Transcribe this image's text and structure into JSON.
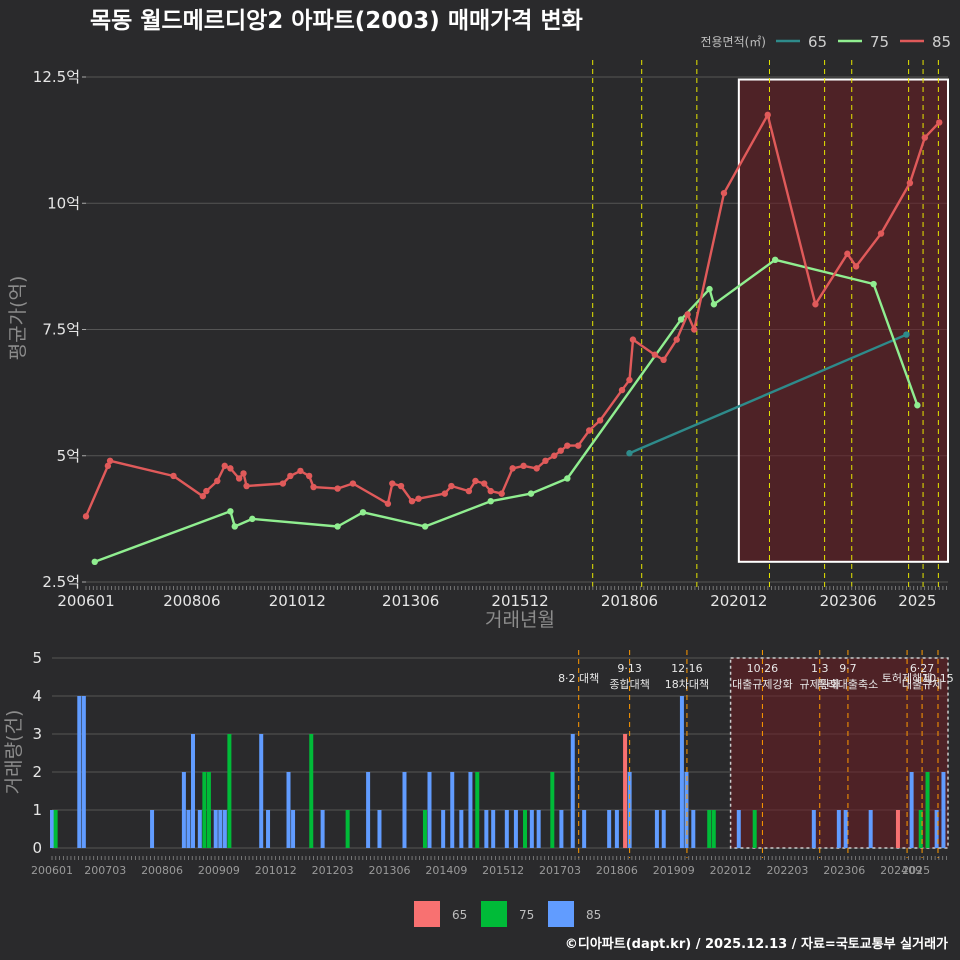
{
  "title": "목동 월드메르디앙2 아파트(2003) 매매가격 변화",
  "credit": "©디아파트(dapt.kr) / 2025.12.13 / 자료=국토교통부 실거래가",
  "colors": {
    "s65": "#2e8b8b",
    "s75": "#90ee90",
    "s85": "#e05a5a",
    "bar65": "#f87171",
    "bar75": "#00bb38",
    "bar85": "#619cff",
    "policy_line": "#e6e600",
    "policy_line_bottom": "#ff9900",
    "highlight_fill": "#6b1c22",
    "highlight_stroke": "#ffffff"
  },
  "chart_data": [
    {
      "type": "line",
      "title": "목동 월드메르디앙2 아파트(2003) 매매가격 변화",
      "xlabel": "거래년월",
      "ylabel": "평균가(억)",
      "xlim": [
        2006.0,
        2025.7
      ],
      "ylim": [
        2.5,
        12.5
      ],
      "y_ticks": [
        2.5,
        5,
        7.5,
        10,
        12.5
      ],
      "y_tick_labels": [
        "2.5억",
        "5억",
        "7.5억",
        "10억",
        "12.5억"
      ],
      "x_ticks": [
        2006.0,
        2008.42,
        2010.83,
        2013.42,
        2015.92,
        2018.42,
        2020.92,
        2023.42,
        2025.0
      ],
      "x_tick_labels": [
        "200601",
        "200806",
        "201012",
        "201306",
        "201512",
        "201806",
        "202012",
        "202306",
        "2025"
      ],
      "legend_title": "전용면적(㎡)",
      "legend_position": "top-right",
      "highlight_range": {
        "x": [
          2020.92,
          2025.7
        ],
        "y": [
          2.9,
          12.45
        ]
      },
      "policy_lines_x": [
        2017.58,
        2018.7,
        2019.96,
        2021.62,
        2022.88,
        2023.5,
        2024.8,
        2025.13,
        2025.48
      ],
      "series": [
        {
          "name": "65",
          "points": [
            [
              2018.42,
              5.05
            ],
            [
              2024.75,
              7.4
            ]
          ]
        },
        {
          "name": "75",
          "points": [
            [
              2006.2,
              2.9
            ],
            [
              2009.3,
              3.9
            ],
            [
              2009.4,
              3.6
            ],
            [
              2009.8,
              3.75
            ],
            [
              2011.75,
              3.6
            ],
            [
              2012.33,
              3.88
            ],
            [
              2013.75,
              3.6
            ],
            [
              2015.25,
              4.1
            ],
            [
              2016.17,
              4.25
            ],
            [
              2017.0,
              4.55
            ],
            [
              2019.6,
              7.7
            ],
            [
              2020.25,
              8.3
            ],
            [
              2020.35,
              8.0
            ],
            [
              2021.75,
              8.88
            ],
            [
              2024.0,
              8.4
            ],
            [
              2025.0,
              6.0
            ]
          ]
        },
        {
          "name": "85",
          "points": [
            [
              2006.0,
              3.8
            ],
            [
              2006.5,
              4.8
            ],
            [
              2006.55,
              4.9
            ],
            [
              2008.0,
              4.6
            ],
            [
              2008.67,
              4.2
            ],
            [
              2008.75,
              4.3
            ],
            [
              2009.0,
              4.5
            ],
            [
              2009.17,
              4.8
            ],
            [
              2009.3,
              4.75
            ],
            [
              2009.5,
              4.55
            ],
            [
              2009.6,
              4.65
            ],
            [
              2009.67,
              4.4
            ],
            [
              2010.5,
              4.45
            ],
            [
              2010.67,
              4.6
            ],
            [
              2010.9,
              4.7
            ],
            [
              2011.1,
              4.6
            ],
            [
              2011.2,
              4.38
            ],
            [
              2011.75,
              4.35
            ],
            [
              2012.1,
              4.45
            ],
            [
              2012.9,
              4.05
            ],
            [
              2013.0,
              4.45
            ],
            [
              2013.2,
              4.4
            ],
            [
              2013.45,
              4.1
            ],
            [
              2013.6,
              4.15
            ],
            [
              2014.2,
              4.25
            ],
            [
              2014.35,
              4.4
            ],
            [
              2014.75,
              4.3
            ],
            [
              2014.9,
              4.5
            ],
            [
              2015.1,
              4.45
            ],
            [
              2015.25,
              4.3
            ],
            [
              2015.5,
              4.25
            ],
            [
              2015.75,
              4.75
            ],
            [
              2016.0,
              4.8
            ],
            [
              2016.3,
              4.75
            ],
            [
              2016.5,
              4.9
            ],
            [
              2016.7,
              5.0
            ],
            [
              2016.85,
              5.1
            ],
            [
              2017.0,
              5.2
            ],
            [
              2017.25,
              5.2
            ],
            [
              2017.5,
              5.5
            ],
            [
              2017.75,
              5.7
            ],
            [
              2018.25,
              6.3
            ],
            [
              2018.42,
              6.5
            ],
            [
              2018.5,
              7.3
            ],
            [
              2019.0,
              7.0
            ],
            [
              2019.2,
              6.9
            ],
            [
              2019.5,
              7.3
            ],
            [
              2019.75,
              7.8
            ],
            [
              2019.9,
              7.5
            ],
            [
              2020.58,
              10.2
            ],
            [
              2021.58,
              11.75
            ],
            [
              2022.67,
              8.0
            ],
            [
              2023.4,
              9.0
            ],
            [
              2023.6,
              8.75
            ],
            [
              2024.17,
              9.4
            ],
            [
              2024.83,
              10.4
            ],
            [
              2025.17,
              11.3
            ],
            [
              2025.5,
              11.6
            ]
          ]
        }
      ]
    },
    {
      "type": "bar",
      "ylabel": "거래량(건)",
      "ylim": [
        0,
        5
      ],
      "y_ticks": [
        0,
        1,
        2,
        3,
        4,
        5
      ],
      "y_tick_labels": [
        "0",
        "1",
        "2",
        "3",
        "4",
        "5"
      ],
      "xlim": [
        2006.0,
        2025.7
      ],
      "x_ticks": [
        2006.0,
        2007.17,
        2008.42,
        2009.67,
        2010.92,
        2012.17,
        2013.42,
        2014.67,
        2015.92,
        2017.17,
        2018.42,
        2019.67,
        2020.92,
        2022.17,
        2023.42,
        2024.67,
        2025.0
      ],
      "x_tick_labels": [
        "200601",
        "200703",
        "200806",
        "200909",
        "201012",
        "201203",
        "201306",
        "201409",
        "201512",
        "201703",
        "201806",
        "201909",
        "202012",
        "202203",
        "202306",
        "202409",
        "2025"
      ],
      "legend": [
        "65",
        "75",
        "85"
      ],
      "legend_position": "bottom",
      "highlight_range": {
        "x": [
          2020.92,
          2025.7
        ]
      },
      "policy_lines_x": [
        2017.58,
        2018.7,
        2019.96,
        2021.62,
        2022.88,
        2023.5,
        2024.8,
        2025.13,
        2025.48
      ],
      "policy_labels": [
        {
          "x": 2017.58,
          "lines": [
            "8·2 대책"
          ]
        },
        {
          "x": 2018.7,
          "lines": [
            "9·13",
            "종합대책"
          ]
        },
        {
          "x": 2019.96,
          "lines": [
            "12·16",
            "18차대책"
          ]
        },
        {
          "x": 2021.62,
          "lines": [
            "10·26",
            "대출규제강화"
          ]
        },
        {
          "x": 2022.88,
          "lines": [
            "1·3",
            "규제완화"
          ]
        },
        {
          "x": 2023.5,
          "lines": [
            "9·7",
            "특례대출축소"
          ]
        },
        {
          "x": 2024.8,
          "lines": [
            "토허제해제"
          ]
        },
        {
          "x": 2025.13,
          "lines": [
            "6·27",
            "대출규제"
          ]
        },
        {
          "x": 2025.48,
          "lines": [
            "10·15"
          ]
        }
      ],
      "bars": [
        {
          "x": 2006.0,
          "s85": 1
        },
        {
          "x": 2006.08,
          "s75": 1
        },
        {
          "x": 2006.6,
          "s85": 4
        },
        {
          "x": 2006.7,
          "s85": 4
        },
        {
          "x": 2008.2,
          "s85": 1
        },
        {
          "x": 2008.9,
          "s85": 2
        },
        {
          "x": 2009.0,
          "s85": 1
        },
        {
          "x": 2009.1,
          "s85": 3
        },
        {
          "x": 2009.25,
          "s85": 1
        },
        {
          "x": 2009.35,
          "s75": 2
        },
        {
          "x": 2009.45,
          "s75": 2
        },
        {
          "x": 2009.6,
          "s85": 1
        },
        {
          "x": 2009.7,
          "s85": 1
        },
        {
          "x": 2009.8,
          "s85": 1
        },
        {
          "x": 2009.9,
          "s75": 3
        },
        {
          "x": 2010.6,
          "s85": 3
        },
        {
          "x": 2010.75,
          "s85": 1
        },
        {
          "x": 2011.2,
          "s85": 2
        },
        {
          "x": 2011.3,
          "s85": 1
        },
        {
          "x": 2011.7,
          "s75": 3
        },
        {
          "x": 2011.95,
          "s85": 1
        },
        {
          "x": 2012.5,
          "s75": 1
        },
        {
          "x": 2012.95,
          "s85": 2
        },
        {
          "x": 2013.2,
          "s85": 1
        },
        {
          "x": 2013.75,
          "s85": 2
        },
        {
          "x": 2014.2,
          "s75": 1
        },
        {
          "x": 2014.3,
          "s85": 2
        },
        {
          "x": 2014.6,
          "s85": 1
        },
        {
          "x": 2014.8,
          "s85": 2
        },
        {
          "x": 2015.0,
          "s85": 1
        },
        {
          "x": 2015.2,
          "s85": 2
        },
        {
          "x": 2015.35,
          "s75": 2
        },
        {
          "x": 2015.55,
          "s85": 1
        },
        {
          "x": 2015.7,
          "s85": 1
        },
        {
          "x": 2016.0,
          "s85": 1
        },
        {
          "x": 2016.2,
          "s85": 1
        },
        {
          "x": 2016.4,
          "s75": 1
        },
        {
          "x": 2016.55,
          "s85": 1
        },
        {
          "x": 2016.7,
          "s85": 1
        },
        {
          "x": 2017.0,
          "s75": 2
        },
        {
          "x": 2017.2,
          "s85": 1
        },
        {
          "x": 2017.45,
          "s85": 3
        },
        {
          "x": 2017.7,
          "s85": 1
        },
        {
          "x": 2018.25,
          "s85": 1
        },
        {
          "x": 2018.42,
          "s85": 1
        },
        {
          "x": 2018.6,
          "s65": 3
        },
        {
          "x": 2018.7,
          "s85": 2
        },
        {
          "x": 2019.3,
          "s85": 1
        },
        {
          "x": 2019.45,
          "s85": 1
        },
        {
          "x": 2019.85,
          "s85": 4
        },
        {
          "x": 2019.95,
          "s85": 2
        },
        {
          "x": 2020.1,
          "s85": 1
        },
        {
          "x": 2020.45,
          "s75": 1
        },
        {
          "x": 2020.55,
          "s75": 1
        },
        {
          "x": 2021.1,
          "s85": 1
        },
        {
          "x": 2021.45,
          "s75": 1
        },
        {
          "x": 2022.75,
          "s85": 1
        },
        {
          "x": 2023.3,
          "s85": 1
        },
        {
          "x": 2023.45,
          "s85": 1
        },
        {
          "x": 2024.0,
          "s85": 1
        },
        {
          "x": 2024.6,
          "s65": 1
        },
        {
          "x": 2024.9,
          "s85": 2
        },
        {
          "x": 2025.1,
          "s75": 1
        },
        {
          "x": 2025.25,
          "s75": 2
        },
        {
          "x": 2025.45,
          "s85": 1
        },
        {
          "x": 2025.6,
          "s85": 2
        }
      ]
    }
  ]
}
